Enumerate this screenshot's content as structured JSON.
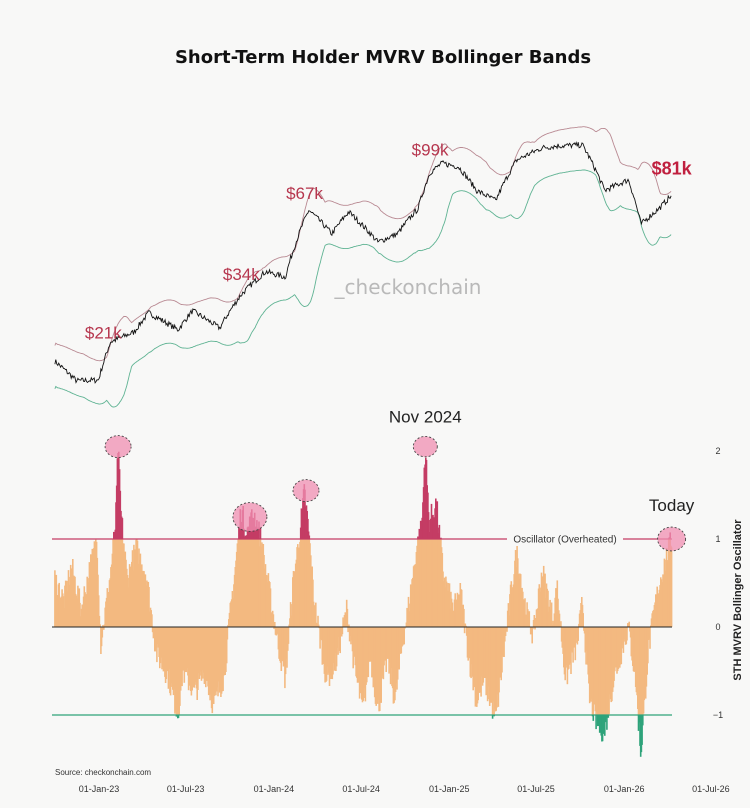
{
  "chart_data": [
    {
      "type": "line",
      "title": "Short-Term Holder MVRV Bollinger Bands",
      "watermark": "_checkonchain",
      "series": [
        {
          "name": "",
          "role": "price",
          "color": "#111111"
        },
        {
          "name": "",
          "role": "upper-band",
          "color": "#b98a93"
        },
        {
          "name": "",
          "role": "lower-band",
          "color": "#5fb393"
        }
      ],
      "price_points": [
        {
          "x": "2022-10-01",
          "y": 19.5
        },
        {
          "x": "2022-11-15",
          "y": 16.5
        },
        {
          "x": "2022-12-31",
          "y": 16.6
        },
        {
          "x": "2023-01-25",
          "y": 23.0
        },
        {
          "x": "2023-03-15",
          "y": 25.0
        },
        {
          "x": "2023-04-15",
          "y": 29.5
        },
        {
          "x": "2023-06-15",
          "y": 25.5
        },
        {
          "x": "2023-07-15",
          "y": 30.0
        },
        {
          "x": "2023-09-10",
          "y": 25.9
        },
        {
          "x": "2023-10-25",
          "y": 34.5
        },
        {
          "x": "2023-12-15",
          "y": 42.0
        },
        {
          "x": "2024-01-25",
          "y": 40.0
        },
        {
          "x": "2024-03-14",
          "y": 71.0
        },
        {
          "x": "2024-05-01",
          "y": 58.0
        },
        {
          "x": "2024-06-05",
          "y": 70.0
        },
        {
          "x": "2024-08-05",
          "y": 54.0
        },
        {
          "x": "2024-09-15",
          "y": 58.0
        },
        {
          "x": "2024-10-28",
          "y": 72.0
        },
        {
          "x": "2024-11-22",
          "y": 98.0
        },
        {
          "x": "2024-12-17",
          "y": 106.0
        },
        {
          "x": "2025-01-20",
          "y": 103.0
        },
        {
          "x": "2025-02-27",
          "y": 84.0
        },
        {
          "x": "2025-04-08",
          "y": 77.0
        },
        {
          "x": "2025-05-22",
          "y": 109.0
        },
        {
          "x": "2025-07-14",
          "y": 121.0
        },
        {
          "x": "2025-08-14",
          "y": 123.0
        },
        {
          "x": "2025-10-06",
          "y": 124.0
        },
        {
          "x": "2025-11-21",
          "y": 84.0
        },
        {
          "x": "2026-01-10",
          "y": 92.0
        },
        {
          "x": "2026-02-05",
          "y": 63.0
        },
        {
          "x": "2026-03-15",
          "y": 72.0
        },
        {
          "x": "2026-04-10",
          "y": 80.5
        }
      ],
      "annotations": [
        {
          "text": "$21k",
          "x": "2023-01-10",
          "y": 21000
        },
        {
          "text": "$34k",
          "x": "2023-10-25",
          "y": 34000
        },
        {
          "text": "$67k",
          "x": "2024-03-05",
          "y": 67000
        },
        {
          "text": "$99k",
          "x": "2024-11-22",
          "y": 99000
        },
        {
          "text": "$81k",
          "x": "2026-04-10",
          "y": 81000
        }
      ]
    },
    {
      "type": "area",
      "ylabel": "STH MVRV Bollinger Oscillator",
      "yticks": [
        -1,
        0,
        1,
        2
      ],
      "ylim": [
        -1.5,
        2.1
      ],
      "xticks": [
        "01-Jan-23",
        "01-Jul-23",
        "01-Jan-24",
        "01-Jul-24",
        "01-Jan-25",
        "01-Jul-25",
        "01-Jan-26",
        "01-Jul-26"
      ],
      "xlim": [
        "2022-09-25",
        "2026-07-20"
      ],
      "thresholds": [
        {
          "label": "Oscillator (Overheated)",
          "y": 1,
          "color": "#c43c64"
        },
        {
          "label": "",
          "y": -1,
          "color": "#2ea37a"
        }
      ],
      "oscillator_points": [
        {
          "x": "2022-10-01",
          "y": 0.55
        },
        {
          "x": "2022-10-20",
          "y": 0.3
        },
        {
          "x": "2022-11-05",
          "y": 0.7
        },
        {
          "x": "2022-11-25",
          "y": 0.2
        },
        {
          "x": "2022-12-10",
          "y": 0.6
        },
        {
          "x": "2022-12-28",
          "y": 1.0
        },
        {
          "x": "2023-01-05",
          "y": -0.2
        },
        {
          "x": "2023-01-25",
          "y": 0.6
        },
        {
          "x": "2023-02-05",
          "y": 1.2
        },
        {
          "x": "2023-02-10",
          "y": 2.05
        },
        {
          "x": "2023-02-16",
          "y": 1.3
        },
        {
          "x": "2023-03-01",
          "y": 0.55
        },
        {
          "x": "2023-03-20",
          "y": 0.9
        },
        {
          "x": "2023-04-10",
          "y": 0.6
        },
        {
          "x": "2023-05-01",
          "y": -0.3
        },
        {
          "x": "2023-05-25",
          "y": -0.55
        },
        {
          "x": "2023-06-15",
          "y": -1.0
        },
        {
          "x": "2023-06-25",
          "y": -0.5
        },
        {
          "x": "2023-07-20",
          "y": -0.75
        },
        {
          "x": "2023-08-10",
          "y": -0.5
        },
        {
          "x": "2023-08-28",
          "y": -0.9
        },
        {
          "x": "2023-09-20",
          "y": -0.55
        },
        {
          "x": "2023-10-01",
          "y": 0.1
        },
        {
          "x": "2023-10-15",
          "y": 0.8
        },
        {
          "x": "2023-10-25",
          "y": 1.35
        },
        {
          "x": "2023-11-05",
          "y": 1.05
        },
        {
          "x": "2023-11-20",
          "y": 1.3
        },
        {
          "x": "2023-12-05",
          "y": 1.0
        },
        {
          "x": "2023-12-20",
          "y": 0.5
        },
        {
          "x": "2024-01-10",
          "y": -0.2
        },
        {
          "x": "2024-01-25",
          "y": -0.6
        },
        {
          "x": "2024-02-10",
          "y": 0.5
        },
        {
          "x": "2024-02-25",
          "y": 1.1
        },
        {
          "x": "2024-03-05",
          "y": 1.55
        },
        {
          "x": "2024-03-15",
          "y": 1.0
        },
        {
          "x": "2024-03-25",
          "y": 0.3
        },
        {
          "x": "2024-04-20",
          "y": -0.6
        },
        {
          "x": "2024-05-10",
          "y": -0.4
        },
        {
          "x": "2024-06-01",
          "y": 0.2
        },
        {
          "x": "2024-06-20",
          "y": -0.55
        },
        {
          "x": "2024-07-05",
          "y": -0.95
        },
        {
          "x": "2024-07-20",
          "y": -0.3
        },
        {
          "x": "2024-08-05",
          "y": -0.95
        },
        {
          "x": "2024-08-25",
          "y": -0.35
        },
        {
          "x": "2024-09-10",
          "y": -0.85
        },
        {
          "x": "2024-09-25",
          "y": -0.2
        },
        {
          "x": "2024-10-10",
          "y": 0.3
        },
        {
          "x": "2024-10-25",
          "y": 0.9
        },
        {
          "x": "2024-11-05",
          "y": 1.15
        },
        {
          "x": "2024-11-12",
          "y": 2.05
        },
        {
          "x": "2024-11-20",
          "y": 1.2
        },
        {
          "x": "2024-12-05",
          "y": 1.4
        },
        {
          "x": "2024-12-20",
          "y": 0.6
        },
        {
          "x": "2025-01-10",
          "y": 0.2
        },
        {
          "x": "2025-01-25",
          "y": 0.4
        },
        {
          "x": "2025-02-10",
          "y": -0.3
        },
        {
          "x": "2025-02-27",
          "y": -0.85
        },
        {
          "x": "2025-03-15",
          "y": -0.6
        },
        {
          "x": "2025-04-08",
          "y": -1.05
        },
        {
          "x": "2025-04-25",
          "y": -0.3
        },
        {
          "x": "2025-05-10",
          "y": 0.4
        },
        {
          "x": "2025-05-22",
          "y": 0.85
        },
        {
          "x": "2025-06-10",
          "y": 0.2
        },
        {
          "x": "2025-06-25",
          "y": -0.1
        },
        {
          "x": "2025-07-14",
          "y": 0.65
        },
        {
          "x": "2025-08-05",
          "y": 0.1
        },
        {
          "x": "2025-08-14",
          "y": 0.45
        },
        {
          "x": "2025-09-01",
          "y": -0.6
        },
        {
          "x": "2025-09-25",
          "y": -0.2
        },
        {
          "x": "2025-10-06",
          "y": 0.3
        },
        {
          "x": "2025-10-20",
          "y": -0.8
        },
        {
          "x": "2025-11-05",
          "y": -1.1
        },
        {
          "x": "2025-11-21",
          "y": -1.2
        },
        {
          "x": "2025-12-10",
          "y": -0.6
        },
        {
          "x": "2026-01-10",
          "y": 0.0
        },
        {
          "x": "2026-01-25",
          "y": -0.6
        },
        {
          "x": "2026-02-05",
          "y": -1.45
        },
        {
          "x": "2026-02-20",
          "y": -0.3
        },
        {
          "x": "2026-03-05",
          "y": 0.2
        },
        {
          "x": "2026-03-20",
          "y": 0.6
        },
        {
          "x": "2026-04-05",
          "y": 0.9
        },
        {
          "x": "2026-04-10",
          "y": 1.0
        }
      ],
      "annotations": [
        {
          "text": "Nov 2024",
          "x": "2024-11-12",
          "y": 2.05
        },
        {
          "text": "Today",
          "x": "2026-04-10",
          "y": 1.0
        }
      ],
      "source": "Source: checkonchain.com"
    }
  ],
  "colors": {
    "price": "#111111",
    "upper_band": "#b98a93",
    "lower_band": "#5fb393",
    "positive_fill": "#f3b980",
    "overheated": "#c43c64",
    "oversold": "#2ea37a",
    "highlight": "#f08fb1",
    "annotation_red": "#b6364e"
  }
}
